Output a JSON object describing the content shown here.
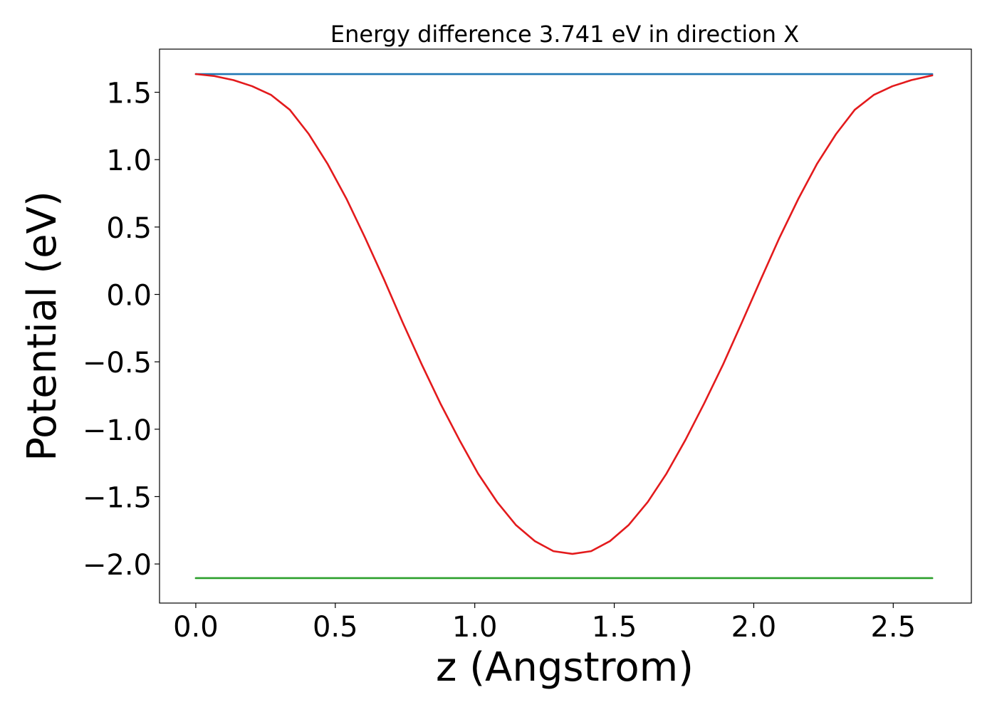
{
  "chart_data": {
    "type": "line",
    "title": "Energy difference 3.741 eV in direction X",
    "xlabel": "z (Angstrom)",
    "ylabel": "Potential (eV)",
    "xlim": [
      -0.13,
      2.78
    ],
    "ylim": [
      -2.29,
      1.82
    ],
    "xticks": [
      0.0,
      0.5,
      1.0,
      1.5,
      2.0,
      2.5
    ],
    "xtick_labels": [
      "0.0",
      "0.5",
      "1.0",
      "1.5",
      "2.0",
      "2.5"
    ],
    "yticks": [
      1.5,
      1.0,
      0.5,
      0.0,
      -0.5,
      -1.0,
      -1.5,
      -2.0
    ],
    "ytick_labels": [
      "1.5",
      "1.0",
      "0.5",
      "0.0",
      "−0.5",
      "−1.0",
      "−1.5",
      "−2.0"
    ],
    "grid": false,
    "series": [
      {
        "color": "#1f77b4",
        "x": [
          0.0,
          2.64
        ],
        "y": [
          1.635,
          1.635
        ]
      },
      {
        "color": "#2ca02c",
        "x": [
          0.0,
          2.64
        ],
        "y": [
          -2.105,
          -2.105
        ]
      },
      {
        "color": "#e31a1c",
        "x": [
          0.0,
          0.067,
          0.135,
          0.202,
          0.27,
          0.337,
          0.405,
          0.472,
          0.54,
          0.607,
          0.675,
          0.742,
          0.81,
          0.877,
          0.945,
          1.012,
          1.08,
          1.147,
          1.215,
          1.282,
          1.35,
          1.417,
          1.485,
          1.552,
          1.62,
          1.687,
          1.755,
          1.822,
          1.89,
          1.957,
          2.025,
          2.092,
          2.16,
          2.227,
          2.295,
          2.362,
          2.43,
          2.497,
          2.565,
          2.64
        ],
        "y": [
          1.635,
          1.62,
          1.59,
          1.545,
          1.48,
          1.37,
          1.19,
          0.97,
          0.71,
          0.42,
          0.11,
          -0.21,
          -0.52,
          -0.81,
          -1.08,
          -1.33,
          -1.54,
          -1.71,
          -1.83,
          -1.905,
          -1.925,
          -1.905,
          -1.83,
          -1.71,
          -1.54,
          -1.33,
          -1.08,
          -0.81,
          -0.52,
          -0.21,
          0.11,
          0.42,
          0.71,
          0.97,
          1.19,
          1.37,
          1.48,
          1.545,
          1.59,
          1.625
        ]
      }
    ]
  }
}
